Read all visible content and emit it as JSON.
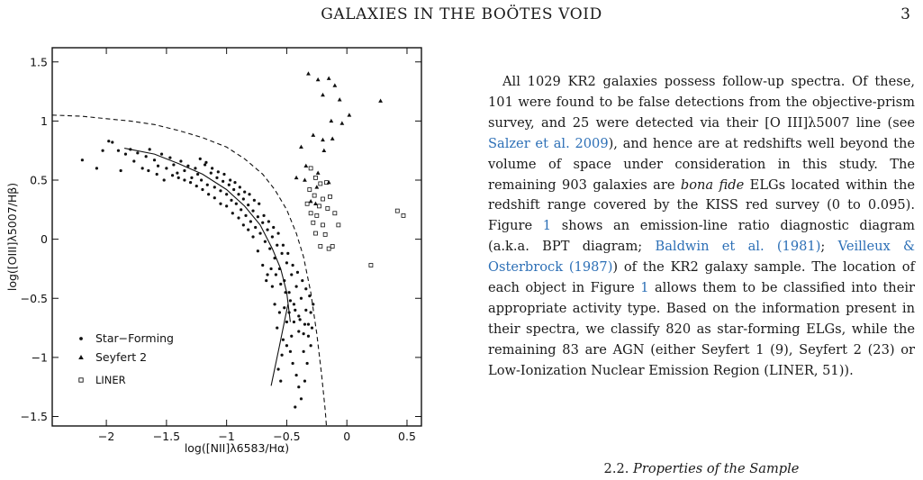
{
  "header": {
    "running_title": "GALAXIES IN THE BOÖTES VOID",
    "page_number": "3"
  },
  "chart_data": {
    "type": "scatter",
    "title": "",
    "xlabel": "log([NII]λ6583/Hα)",
    "ylabel": "log([OIII]λ5007/Hβ)",
    "xlim": [
      -2.45,
      0.62
    ],
    "ylim": [
      -1.58,
      1.62
    ],
    "x_ticks": [
      -2,
      -1.5,
      -1,
      -0.5,
      0,
      0.5
    ],
    "x_tick_labels": [
      "−2",
      "−1.5",
      "−1",
      "−0.5",
      "0",
      "0.5"
    ],
    "y_ticks": [
      -1.5,
      -1,
      -0.5,
      0,
      0.5,
      1,
      1.5
    ],
    "y_tick_labels": [
      "−1.5",
      "−1",
      "−0.5",
      "0",
      "0.5",
      "1",
      "1.5"
    ],
    "grid": false,
    "legend": {
      "placement": "lower-left",
      "entries": [
        "Star−Forming",
        "Seyfert 2",
        "LINER"
      ]
    },
    "series": [
      {
        "name": "Star−Forming",
        "marker": "dot",
        "points": [
          [
            -2.2,
            0.67
          ],
          [
            -2.08,
            0.6
          ],
          [
            -2.03,
            0.75
          ],
          [
            -1.98,
            0.83
          ],
          [
            -1.95,
            0.82
          ],
          [
            -1.9,
            0.75
          ],
          [
            -1.88,
            0.58
          ],
          [
            -1.84,
            0.72
          ],
          [
            -1.8,
            0.76
          ],
          [
            -1.77,
            0.66
          ],
          [
            -1.74,
            0.73
          ],
          [
            -1.7,
            0.6
          ],
          [
            -1.67,
            0.7
          ],
          [
            -1.64,
            0.76
          ],
          [
            -1.6,
            0.67
          ],
          [
            -1.57,
            0.62
          ],
          [
            -1.54,
            0.72
          ],
          [
            -1.5,
            0.6
          ],
          [
            -1.47,
            0.69
          ],
          [
            -1.44,
            0.63
          ],
          [
            -1.41,
            0.56
          ],
          [
            -1.38,
            0.66
          ],
          [
            -1.35,
            0.58
          ],
          [
            -1.32,
            0.62
          ],
          [
            -1.29,
            0.52
          ],
          [
            -1.26,
            0.6
          ],
          [
            -1.24,
            0.55
          ],
          [
            -1.21,
            0.5
          ],
          [
            -1.18,
            0.63
          ],
          [
            -1.16,
            0.46
          ],
          [
            -1.13,
            0.56
          ],
          [
            -1.1,
            0.44
          ],
          [
            -1.08,
            0.52
          ],
          [
            -1.05,
            0.41
          ],
          [
            -1.03,
            0.49
          ],
          [
            -1,
            0.38
          ],
          [
            -0.98,
            0.46
          ],
          [
            -0.96,
            0.33
          ],
          [
            -0.94,
            0.42
          ],
          [
            -0.92,
            0.3
          ],
          [
            -0.9,
            0.38
          ],
          [
            -0.88,
            0.25
          ],
          [
            -0.86,
            0.34
          ],
          [
            -0.84,
            0.2
          ],
          [
            -0.82,
            0.29
          ],
          [
            -0.8,
            0.15
          ],
          [
            -0.78,
            0.24
          ],
          [
            -0.76,
            0.1
          ],
          [
            -0.74,
            0.19
          ],
          [
            -0.72,
            0.05
          ],
          [
            -0.7,
            0.14
          ],
          [
            -0.68,
            -0.02
          ],
          [
            -0.66,
            0.08
          ],
          [
            -0.64,
            -0.08
          ],
          [
            -0.62,
            0.02
          ],
          [
            -0.6,
            -0.16
          ],
          [
            -0.58,
            -0.05
          ],
          [
            -0.56,
            -0.25
          ],
          [
            -0.54,
            -0.12
          ],
          [
            -0.52,
            -0.35
          ],
          [
            -0.5,
            -0.2
          ],
          [
            -0.48,
            -0.45
          ],
          [
            -0.46,
            -0.3
          ],
          [
            -0.44,
            -0.55
          ],
          [
            -0.42,
            -0.4
          ],
          [
            -0.4,
            -0.65
          ],
          [
            -0.38,
            -0.5
          ],
          [
            -0.36,
            -0.8
          ],
          [
            -0.34,
            -0.6
          ],
          [
            -0.32,
            -0.72
          ],
          [
            -0.3,
            -0.9
          ],
          [
            -0.28,
            -0.55
          ],
          [
            -0.5,
            -0.7
          ],
          [
            -0.53,
            -0.85
          ],
          [
            -0.47,
            -0.95
          ],
          [
            -0.45,
            -1.05
          ],
          [
            -0.42,
            -1.15
          ],
          [
            -0.4,
            -1.25
          ],
          [
            -0.38,
            -1.35
          ],
          [
            -0.43,
            -1.42
          ],
          [
            -0.55,
            -1.2
          ],
          [
            -0.58,
            -0.75
          ],
          [
            -0.62,
            -0.4
          ],
          [
            -0.66,
            -0.3
          ],
          [
            -0.7,
            -0.22
          ],
          [
            -0.74,
            -0.1
          ],
          [
            -0.78,
            0.02
          ],
          [
            -0.82,
            0.08
          ],
          [
            -0.86,
            0.12
          ],
          [
            -0.9,
            0.18
          ],
          [
            -0.95,
            0.22
          ],
          [
            -1,
            0.28
          ],
          [
            -1.05,
            0.3
          ],
          [
            -1.1,
            0.35
          ],
          [
            -1.15,
            0.38
          ],
          [
            -1.2,
            0.42
          ],
          [
            -1.25,
            0.45
          ],
          [
            -1.3,
            0.48
          ],
          [
            -1.35,
            0.5
          ],
          [
            -1.4,
            0.52
          ],
          [
            -1.45,
            0.54
          ],
          [
            -1.52,
            0.5
          ],
          [
            -1.58,
            0.55
          ],
          [
            -1.65,
            0.58
          ],
          [
            -0.6,
            -0.55
          ],
          [
            -0.56,
            -0.62
          ],
          [
            -0.52,
            -0.58
          ],
          [
            -0.48,
            -0.62
          ],
          [
            -0.44,
            -0.7
          ],
          [
            -0.4,
            -0.78
          ],
          [
            -0.36,
            -0.95
          ],
          [
            -0.33,
            -1.05
          ],
          [
            -0.3,
            -0.62
          ],
          [
            -0.31,
            -0.48
          ],
          [
            -0.34,
            -0.42
          ],
          [
            -0.37,
            -0.35
          ],
          [
            -0.41,
            -0.28
          ],
          [
            -0.45,
            -0.22
          ],
          [
            -0.49,
            -0.12
          ],
          [
            -0.53,
            -0.05
          ],
          [
            -0.57,
            0.05
          ],
          [
            -0.61,
            0.1
          ],
          [
            -0.65,
            0.15
          ],
          [
            -0.69,
            0.2
          ],
          [
            -0.73,
            0.3
          ],
          [
            -0.77,
            0.33
          ],
          [
            -0.81,
            0.38
          ],
          [
            -0.85,
            0.4
          ],
          [
            -0.89,
            0.44
          ],
          [
            -0.93,
            0.48
          ],
          [
            -0.97,
            0.5
          ],
          [
            -1.02,
            0.55
          ],
          [
            -1.07,
            0.57
          ],
          [
            -1.12,
            0.6
          ],
          [
            -1.17,
            0.65
          ],
          [
            -1.22,
            0.68
          ],
          [
            -0.67,
            -0.35
          ],
          [
            -0.63,
            -0.25
          ],
          [
            -0.59,
            -0.3
          ],
          [
            -0.55,
            -0.38
          ],
          [
            -0.51,
            -0.45
          ],
          [
            -0.47,
            -0.52
          ],
          [
            -0.43,
            -0.6
          ],
          [
            -0.39,
            -0.68
          ],
          [
            -0.35,
            -0.72
          ],
          [
            -0.32,
            -0.82
          ],
          [
            -0.29,
            -0.75
          ],
          [
            -0.46,
            -0.82
          ],
          [
            -0.5,
            -0.9
          ],
          [
            -0.54,
            -0.98
          ],
          [
            -0.57,
            -1.1
          ],
          [
            -0.35,
            -1.2
          ]
        ]
      },
      {
        "name": "Seyfert 2",
        "marker": "triangle",
        "points": [
          [
            -0.32,
            1.4
          ],
          [
            -0.24,
            1.35
          ],
          [
            -0.15,
            1.36
          ],
          [
            -0.1,
            1.3
          ],
          [
            -0.2,
            1.22
          ],
          [
            -0.06,
            1.18
          ],
          [
            0.28,
            1.17
          ],
          [
            0.02,
            1.05
          ],
          [
            -0.13,
            1.0
          ],
          [
            -0.04,
            0.98
          ],
          [
            -0.28,
            0.88
          ],
          [
            -0.2,
            0.84
          ],
          [
            -0.12,
            0.85
          ],
          [
            -0.38,
            0.78
          ],
          [
            -0.19,
            0.75
          ],
          [
            -0.34,
            0.62
          ],
          [
            -0.24,
            0.56
          ],
          [
            -0.42,
            0.52
          ],
          [
            -0.35,
            0.5
          ],
          [
            -0.15,
            0.48
          ],
          [
            -0.25,
            0.44
          ],
          [
            -0.3,
            0.32
          ],
          [
            -0.26,
            0.3
          ]
        ]
      },
      {
        "name": "LINER",
        "marker": "square",
        "points": [
          [
            -0.3,
            0.6
          ],
          [
            -0.26,
            0.52
          ],
          [
            -0.22,
            0.47
          ],
          [
            -0.17,
            0.48
          ],
          [
            -0.31,
            0.42
          ],
          [
            -0.27,
            0.37
          ],
          [
            -0.2,
            0.34
          ],
          [
            -0.14,
            0.36
          ],
          [
            -0.33,
            0.3
          ],
          [
            -0.23,
            0.28
          ],
          [
            -0.16,
            0.26
          ],
          [
            -0.3,
            0.22
          ],
          [
            -0.25,
            0.2
          ],
          [
            -0.1,
            0.22
          ],
          [
            -0.28,
            0.14
          ],
          [
            -0.2,
            0.12
          ],
          [
            -0.07,
            0.12
          ],
          [
            -0.26,
            0.05
          ],
          [
            -0.18,
            0.04
          ],
          [
            -0.22,
            -0.06
          ],
          [
            -0.15,
            -0.08
          ],
          [
            -0.12,
            -0.06
          ],
          [
            0.42,
            0.24
          ],
          [
            0.47,
            0.2
          ],
          [
            0.2,
            -0.22
          ]
        ]
      }
    ],
    "curves": [
      {
        "kind": "dashed-demarcation",
        "points": [
          [
            -2.45,
            1.05
          ],
          [
            -2.2,
            1.04
          ],
          [
            -2,
            1.02
          ],
          [
            -1.8,
            1.0
          ],
          [
            -1.6,
            0.97
          ],
          [
            -1.4,
            0.92
          ],
          [
            -1.2,
            0.86
          ],
          [
            -1.0,
            0.78
          ],
          [
            -0.85,
            0.68
          ],
          [
            -0.7,
            0.55
          ],
          [
            -0.6,
            0.42
          ],
          [
            -0.5,
            0.25
          ],
          [
            -0.42,
            0.05
          ],
          [
            -0.36,
            -0.15
          ],
          [
            -0.3,
            -0.45
          ],
          [
            -0.25,
            -0.8
          ],
          [
            -0.21,
            -1.15
          ],
          [
            -0.18,
            -1.45
          ],
          [
            -0.17,
            -1.58
          ]
        ]
      },
      {
        "kind": "solid-mean-track",
        "points": [
          [
            -1.85,
            0.77
          ],
          [
            -1.6,
            0.72
          ],
          [
            -1.4,
            0.64
          ],
          [
            -1.2,
            0.55
          ],
          [
            -1.0,
            0.42
          ],
          [
            -0.85,
            0.28
          ],
          [
            -0.72,
            0.12
          ],
          [
            -0.62,
            -0.08
          ],
          [
            -0.55,
            -0.25
          ],
          [
            -0.5,
            -0.45
          ],
          [
            -0.47,
            -0.7
          ]
        ]
      },
      {
        "kind": "solid-branch",
        "points": [
          [
            -0.49,
            -0.55
          ],
          [
            -0.56,
            -0.9
          ],
          [
            -0.63,
            -1.24
          ]
        ]
      }
    ]
  },
  "body": {
    "para_a": "All 1029 KR2 galaxies possess follow-up spectra. Of these, 101 were found to be false detections from the objective-prism survey, and 25 were detected via their [O III]λ5007 line (see ",
    "cite_salzer": "Salzer et al. 2009",
    "para_b": "), and hence are at redshifts well beyond the volume of space under consideration in this study. The remaining 903 galaxies are ",
    "bona_fide": "bona fide",
    "para_c": " ELGs located within the redshift range covered by the KISS red survey (0 to 0.095). Figure ",
    "fig_ref_1": "1",
    "para_d": " shows an emission-line ratio diagnostic diagram (a.k.a. BPT diagram; ",
    "cite_baldwin": "Baldwin et al. (1981)",
    "para_e": "; ",
    "cite_veilleux": "Veilleux & Osterbrock (1987)",
    "para_f": ") of the KR2 galaxy sample. The location of each object in Figure ",
    "fig_ref_2": "1",
    "para_g": " allows them to be classified into their appropriate activity type. Based on the information present in their spectra, we classify 820 as star-forming ELGs, while the remaining 83 are AGN (either Seyfert 1 (9), Seyfert 2 (23) or Low-Ionization Nuclear Emission Region (LINER, 51))."
  },
  "section": {
    "number": "2.2.",
    "title": "Properties of the Sample"
  }
}
